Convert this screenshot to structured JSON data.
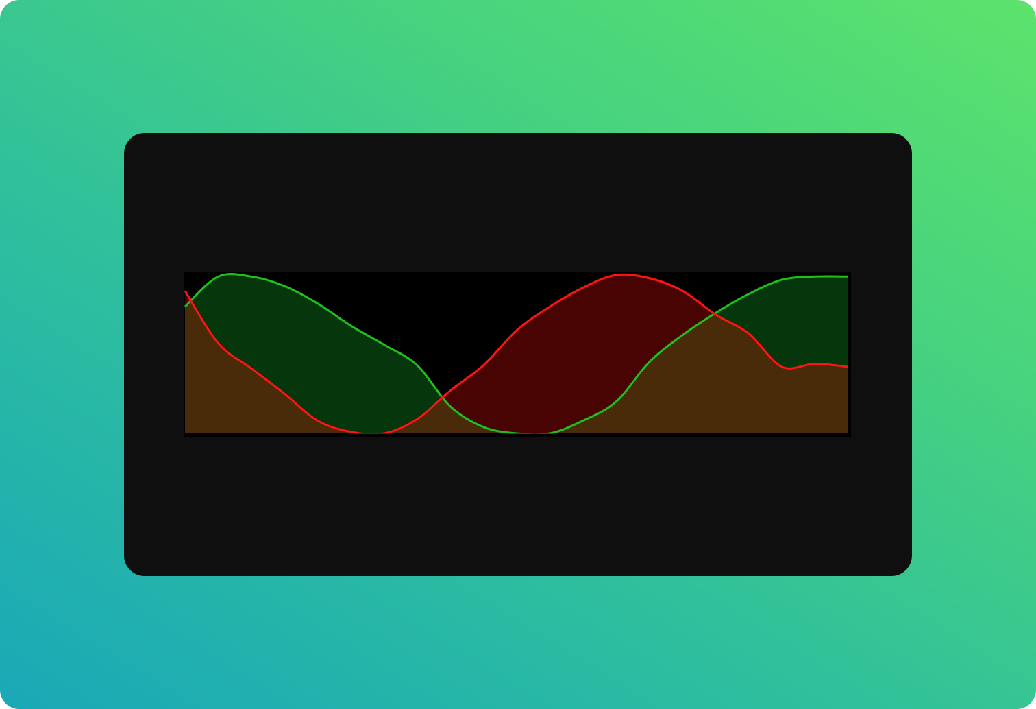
{
  "chart_data": {
    "type": "area",
    "xlim": [
      0,
      1
    ],
    "ylim": [
      0,
      1
    ],
    "grid": false,
    "legend": "none",
    "x": [
      0.0,
      0.05,
      0.1,
      0.15,
      0.2,
      0.25,
      0.3,
      0.35,
      0.4,
      0.45,
      0.5,
      0.55,
      0.6,
      0.65,
      0.7,
      0.75,
      0.8,
      0.85,
      0.9,
      0.95,
      1.0
    ],
    "series": [
      {
        "color": "#1fbf1f",
        "fill": "#06360b",
        "values": [
          0.8,
          0.99,
          0.99,
          0.93,
          0.82,
          0.68,
          0.56,
          0.43,
          0.17,
          0.04,
          0.0,
          0.0,
          0.08,
          0.2,
          0.45,
          0.62,
          0.76,
          0.88,
          0.97,
          0.99,
          0.99
        ]
      },
      {
        "color": "#ff1414",
        "fill": "#480303",
        "values": [
          0.9,
          0.57,
          0.41,
          0.25,
          0.08,
          0.01,
          0.0,
          0.09,
          0.27,
          0.43,
          0.65,
          0.8,
          0.92,
          1.0,
          0.98,
          0.9,
          0.75,
          0.63,
          0.42,
          0.44,
          0.42
        ]
      }
    ],
    "overlap_fill": "#4a2b09",
    "plot_background": "#000000"
  }
}
